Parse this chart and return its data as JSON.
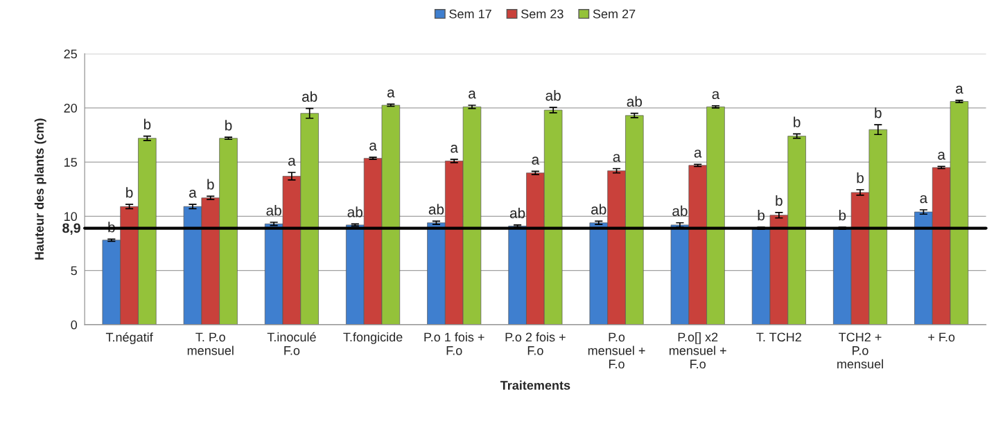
{
  "chart_data": {
    "type": "bar",
    "xlabel": "Traitements",
    "ylabel": "Hauteur des plants (cm)",
    "categories": [
      "T.négatif",
      "T. P.o\nmensuel",
      "T.inoculé\nF.o",
      "T.fongicide",
      "P.o 1 fois +\nF.o",
      "P.o 2 fois +\nF.o",
      "P.o\nmensuel +\nF.o",
      "P.o[] x2\nmensuel +\nF.o",
      "T. TCH2",
      "TCH2 +\nP.o\nmensuel",
      "+ F.o"
    ],
    "series": [
      {
        "name": "Sem 17",
        "color": "#3f7fcf",
        "values": [
          7.8,
          10.9,
          9.3,
          9.2,
          9.4,
          9.1,
          9.4,
          9.2,
          8.9,
          8.9,
          10.4
        ],
        "errors": [
          0.1,
          0.2,
          0.15,
          0.1,
          0.15,
          0.1,
          0.15,
          0.2,
          0.1,
          0.1,
          0.2
        ],
        "value_labels": [
          "b",
          "a",
          "ab",
          "ab",
          "ab",
          "ab",
          "ab",
          "ab",
          "b",
          "b",
          "a"
        ]
      },
      {
        "name": "Sem 23",
        "color": "#c9413b",
        "values": [
          10.9,
          11.7,
          13.7,
          15.35,
          15.1,
          14.0,
          14.2,
          14.7,
          10.1,
          12.2,
          14.5
        ],
        "errors": [
          0.2,
          0.15,
          0.35,
          0.1,
          0.15,
          0.15,
          0.2,
          0.1,
          0.25,
          0.25,
          0.1
        ],
        "value_labels": [
          "b",
          "b",
          "a",
          "a",
          "a",
          "a",
          "a",
          "a",
          "b",
          "b",
          "a"
        ]
      },
      {
        "name": "Sem 27",
        "color": "#94c23a",
        "values": [
          17.2,
          17.2,
          19.5,
          20.25,
          20.1,
          19.8,
          19.3,
          20.1,
          17.4,
          18.0,
          20.6
        ],
        "errors": [
          0.2,
          0.1,
          0.45,
          0.1,
          0.15,
          0.25,
          0.2,
          0.1,
          0.2,
          0.45,
          0.1
        ],
        "value_labels": [
          "b",
          "b",
          "ab",
          "a",
          "a",
          "ab",
          "ab",
          "a",
          "b",
          "b",
          "a"
        ]
      }
    ],
    "ylim": [
      0,
      25
    ],
    "yticks": [
      0,
      5,
      10,
      15,
      20,
      25
    ],
    "ref_lines": [
      {
        "axis": "y",
        "value": 8.9,
        "label": "8,9",
        "color": "#000000"
      }
    ],
    "grid": "y",
    "legend": "top"
  }
}
